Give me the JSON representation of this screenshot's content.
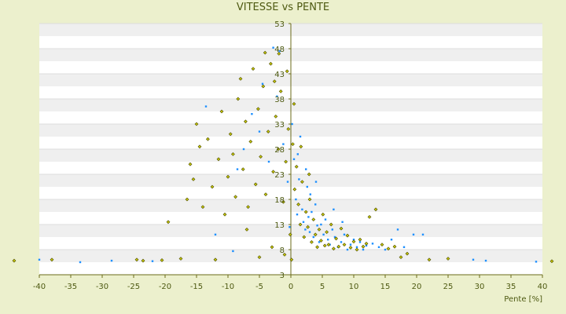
{
  "chart_data": {
    "type": "scatter",
    "title": "VITESSE vs PENTE",
    "xlabel": "Pente [%]",
    "ylabel": "",
    "xlim": [
      -40,
      40
    ],
    "ylim": [
      3,
      53
    ],
    "x_ticks": [
      -40,
      -35,
      -30,
      -25,
      -20,
      -15,
      -10,
      -5,
      0,
      5,
      10,
      15,
      20,
      25,
      30,
      35,
      40
    ],
    "y_ticks": [
      3,
      8,
      13,
      18,
      23,
      28,
      33,
      38,
      43,
      48,
      53
    ],
    "grid": true,
    "colors": {
      "background": "#ecf0cd",
      "plot_light": "#ffffff",
      "plot_band": "#efefef",
      "axis": "#6b6b1a",
      "text": "#4e5a12",
      "series_a": "#1e90ff",
      "series_b_fill": "#c8c800",
      "series_b_stroke": "#4a4a00"
    },
    "series": [
      {
        "marker": "point-blue",
        "values": [
          [
            -40,
            6.0
          ],
          [
            -33.5,
            5.5
          ],
          [
            -28.5,
            5.8
          ],
          [
            -22,
            5.7
          ],
          [
            -13.5,
            36.5
          ],
          [
            -12,
            11.0
          ],
          [
            -9.2,
            7.7
          ],
          [
            -8.5,
            24.0
          ],
          [
            -7.5,
            28.0
          ],
          [
            -6.2,
            35.0
          ],
          [
            -5,
            31.5
          ],
          [
            -4.5,
            41.0
          ],
          [
            -3.5,
            25.5
          ],
          [
            -2.8,
            48.2
          ],
          [
            -2.2,
            38.5
          ],
          [
            -1.8,
            47.5
          ],
          [
            -1.2,
            29.0
          ],
          [
            -0.5,
            21.5
          ],
          [
            -0.2,
            12.5
          ],
          [
            0.2,
            33.0
          ],
          [
            0.5,
            26.0
          ],
          [
            0.8,
            18.0
          ],
          [
            1.0,
            15.0
          ],
          [
            1.3,
            22.0
          ],
          [
            1.5,
            30.5
          ],
          [
            1.8,
            16.0
          ],
          [
            2.0,
            13.5
          ],
          [
            2.3,
            12.0
          ],
          [
            2.6,
            20.5
          ],
          [
            2.8,
            14.5
          ],
          [
            3.0,
            11.5
          ],
          [
            3.3,
            15.5
          ],
          [
            3.6,
            10.5
          ],
          [
            3.9,
            17.0
          ],
          [
            4.2,
            12.8
          ],
          [
            4.5,
            9.5
          ],
          [
            4.8,
            13.0
          ],
          [
            5.2,
            11.0
          ],
          [
            5.5,
            14.0
          ],
          [
            5.9,
            10.0
          ],
          [
            6.2,
            9.0
          ],
          [
            6.6,
            12.0
          ],
          [
            7.0,
            10.5
          ],
          [
            7.5,
            8.5
          ],
          [
            8.0,
            9.5
          ],
          [
            8.5,
            11.0
          ],
          [
            9.0,
            8.0
          ],
          [
            9.5,
            9.0
          ],
          [
            10.0,
            10.0
          ],
          [
            10.5,
            8.5
          ],
          [
            11.0,
            9.5
          ],
          [
            11.5,
            8.0
          ],
          [
            12.0,
            8.8
          ],
          [
            13.0,
            9.2
          ],
          [
            14.0,
            8.5
          ],
          [
            15.0,
            8.0
          ],
          [
            16.0,
            10.0
          ],
          [
            17.0,
            12.0
          ],
          [
            18.0,
            8.5
          ],
          [
            19.5,
            11.0
          ],
          [
            21.0,
            11.0
          ],
          [
            29.0,
            6.0
          ],
          [
            31.0,
            5.8
          ],
          [
            39.0,
            5.6
          ],
          [
            2.4,
            24.0
          ],
          [
            3.1,
            19.0
          ],
          [
            4.0,
            21.5
          ],
          [
            1.1,
            27.0
          ],
          [
            6.8,
            16.0
          ],
          [
            8.2,
            13.5
          ]
        ]
      },
      {
        "marker": "diamond-olive",
        "values": [
          [
            -44,
            5.8
          ],
          [
            -38,
            6.0
          ],
          [
            -24.5,
            6.0
          ],
          [
            -23.5,
            5.8
          ],
          [
            -20.5,
            5.9
          ],
          [
            -19.5,
            13.5
          ],
          [
            -17.5,
            6.2
          ],
          [
            -16.5,
            18.0
          ],
          [
            -16,
            25.0
          ],
          [
            -15.5,
            22.0
          ],
          [
            -15,
            33.0
          ],
          [
            -14.5,
            28.5
          ],
          [
            -14,
            16.5
          ],
          [
            -13.2,
            30.0
          ],
          [
            -12.5,
            20.5
          ],
          [
            -12,
            6.0
          ],
          [
            -11.5,
            26.0
          ],
          [
            -11,
            35.5
          ],
          [
            -10.5,
            15.0
          ],
          [
            -10,
            22.5
          ],
          [
            -9.6,
            31.0
          ],
          [
            -9.2,
            27.0
          ],
          [
            -8.8,
            18.5
          ],
          [
            -8.4,
            38.0
          ],
          [
            -8.0,
            42.0
          ],
          [
            -7.6,
            24.0
          ],
          [
            -7.2,
            33.5
          ],
          [
            -6.8,
            16.5
          ],
          [
            -6.4,
            29.5
          ],
          [
            -6.0,
            44.0
          ],
          [
            -5.6,
            21.0
          ],
          [
            -5.2,
            36.0
          ],
          [
            -4.8,
            26.5
          ],
          [
            -4.4,
            40.5
          ],
          [
            -4.0,
            19.0
          ],
          [
            -3.6,
            31.5
          ],
          [
            -3.2,
            45.0
          ],
          [
            -2.8,
            23.5
          ],
          [
            -2.4,
            34.5
          ],
          [
            -2.0,
            28.0
          ],
          [
            -1.6,
            39.5
          ],
          [
            -1.2,
            17.5
          ],
          [
            -0.8,
            25.5
          ],
          [
            -0.4,
            32.0
          ],
          [
            -0.1,
            11.0
          ],
          [
            0.1,
            6.0
          ],
          [
            0.3,
            29.0
          ],
          [
            0.6,
            20.0
          ],
          [
            0.9,
            24.5
          ],
          [
            1.2,
            17.0
          ],
          [
            1.5,
            13.0
          ],
          [
            1.8,
            21.5
          ],
          [
            2.1,
            10.5
          ],
          [
            2.4,
            15.5
          ],
          [
            2.7,
            12.5
          ],
          [
            3.0,
            18.0
          ],
          [
            3.3,
            9.5
          ],
          [
            3.6,
            14.0
          ],
          [
            3.9,
            11.0
          ],
          [
            4.2,
            8.5
          ],
          [
            4.5,
            12.0
          ],
          [
            4.8,
            9.8
          ],
          [
            5.1,
            15.0
          ],
          [
            5.4,
            8.8
          ],
          [
            5.7,
            11.5
          ],
          [
            6.0,
            9.0
          ],
          [
            6.4,
            13.0
          ],
          [
            6.8,
            8.2
          ],
          [
            7.2,
            10.2
          ],
          [
            7.6,
            8.6
          ],
          [
            8.0,
            12.2
          ],
          [
            8.5,
            9.0
          ],
          [
            9.0,
            10.8
          ],
          [
            9.5,
            8.4
          ],
          [
            10.0,
            9.6
          ],
          [
            10.5,
            8.0
          ],
          [
            11.0,
            10.0
          ],
          [
            11.5,
            8.6
          ],
          [
            12.0,
            9.2
          ],
          [
            12.5,
            14.5
          ],
          [
            13.5,
            16.0
          ],
          [
            14.5,
            9.0
          ],
          [
            15.5,
            8.2
          ],
          [
            16.5,
            8.6
          ],
          [
            17.5,
            6.5
          ],
          [
            18.5,
            7.2
          ],
          [
            22,
            6.0
          ],
          [
            25,
            6.2
          ],
          [
            41.5,
            5.7
          ],
          [
            -1.0,
            7.0
          ],
          [
            -3.0,
            8.5
          ],
          [
            -5.0,
            6.5
          ],
          [
            -7.0,
            12.0
          ],
          [
            0.5,
            37.0
          ],
          [
            1.6,
            28.5
          ],
          [
            2.9,
            23.0
          ],
          [
            -0.6,
            43.5
          ],
          [
            -1.9,
            47.0
          ],
          [
            -2.6,
            41.5
          ],
          [
            -4.1,
            47.2
          ]
        ]
      }
    ]
  }
}
